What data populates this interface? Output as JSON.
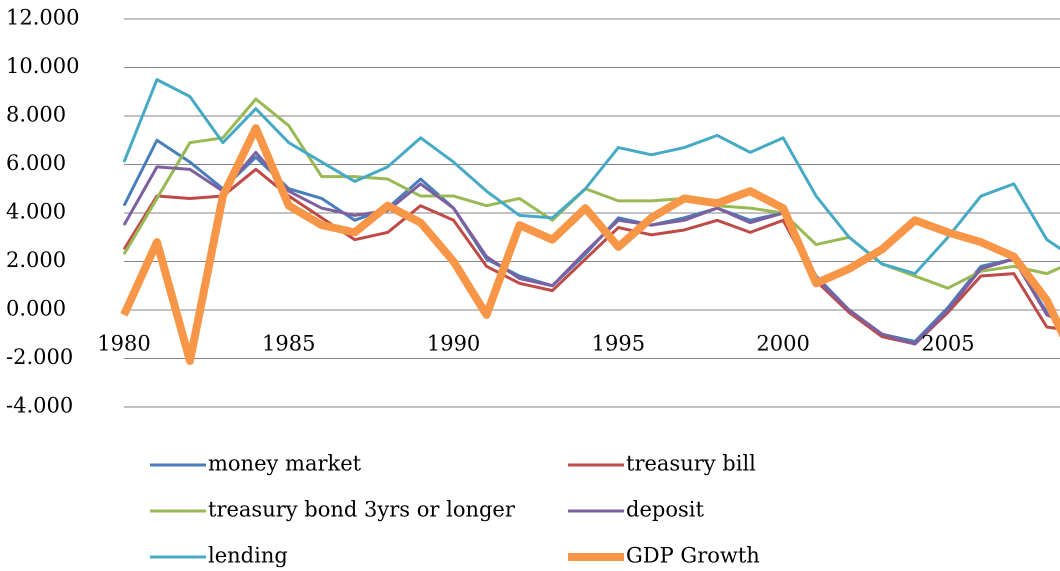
{
  "chart_data": {
    "type": "line",
    "x": [
      1980,
      1981,
      1982,
      1983,
      1984,
      1985,
      1986,
      1987,
      1988,
      1989,
      1990,
      1991,
      1992,
      1993,
      1994,
      1995,
      1996,
      1997,
      1998,
      1999,
      2000,
      2001,
      2002,
      2003,
      2004,
      2005,
      2006,
      2007,
      2008,
      2009
    ],
    "xlim": [
      1980,
      2008.4
    ],
    "xticks": [
      1980,
      1985,
      1990,
      1995,
      2000,
      2005
    ],
    "ylim": [
      -4,
      12
    ],
    "yticks": [
      {
        "value": -4,
        "label": "-4.000"
      },
      {
        "value": -2,
        "label": "-2.000"
      },
      {
        "value": 0,
        "label": "0.000"
      },
      {
        "value": 2,
        "label": "2.000"
      },
      {
        "value": 4,
        "label": "4.000"
      },
      {
        "value": 6,
        "label": "6.000"
      },
      {
        "value": 8,
        "label": "8.000"
      },
      {
        "value": 10,
        "label": "10.000"
      },
      {
        "value": 12,
        "label": "12.000"
      }
    ],
    "grid": true,
    "legend": "bottom",
    "series": [
      {
        "name": "money market",
        "color": "#4a7ebb",
        "linewidth": 3,
        "values": [
          4.3,
          7.0,
          6.1,
          5.0,
          6.3,
          5.0,
          4.6,
          3.7,
          4.2,
          5.4,
          4.2,
          2.1,
          1.4,
          1.0,
          2.3,
          3.8,
          3.5,
          3.8,
          4.2,
          3.7,
          4.0,
          1.4,
          0.0,
          -1.0,
          -1.3,
          0.1,
          1.8,
          2.1,
          -0.1,
          -1.1
        ]
      },
      {
        "name": "treasury bill",
        "color": "#be4b48",
        "linewidth": 3,
        "values": [
          2.5,
          4.7,
          4.6,
          4.7,
          5.8,
          4.7,
          3.8,
          2.9,
          3.2,
          4.3,
          3.7,
          1.8,
          1.1,
          0.8,
          2.1,
          3.4,
          3.1,
          3.3,
          3.7,
          3.2,
          3.7,
          1.2,
          -0.1,
          -1.1,
          -1.4,
          -0.1,
          1.4,
          1.5,
          -0.7,
          -0.9
        ]
      },
      {
        "name": "treasury bond 3yrs or longer",
        "color": "#98b954",
        "linewidth": 3,
        "values": [
          2.3,
          4.6,
          6.9,
          7.1,
          8.7,
          7.6,
          5.5,
          5.5,
          5.4,
          4.7,
          4.7,
          4.3,
          4.6,
          3.7,
          5.0,
          4.5,
          4.5,
          4.6,
          4.3,
          4.2,
          4.0,
          2.7,
          3.0,
          1.9,
          1.4,
          0.9,
          1.6,
          1.8,
          1.5,
          2.1
        ]
      },
      {
        "name": "deposit",
        "color": "#7d60a0",
        "linewidth": 3,
        "values": [
          3.5,
          5.9,
          5.8,
          4.9,
          6.5,
          4.9,
          4.2,
          3.9,
          4.1,
          5.2,
          4.2,
          2.2,
          1.3,
          1.0,
          2.4,
          3.7,
          3.5,
          3.7,
          4.2,
          3.6,
          4.0,
          1.3,
          0.0,
          -1.0,
          -1.4,
          0.0,
          1.7,
          2.1,
          -0.2,
          -0.8
        ]
      },
      {
        "name": "lending",
        "color": "#46aac5",
        "linewidth": 3,
        "values": [
          6.1,
          9.5,
          8.8,
          6.9,
          8.3,
          6.9,
          6.1,
          5.3,
          5.9,
          7.1,
          6.1,
          4.9,
          3.9,
          3.8,
          5.0,
          6.7,
          6.4,
          6.7,
          7.2,
          6.5,
          7.1,
          4.7,
          3.0,
          1.9,
          1.5,
          3.0,
          4.7,
          5.2,
          2.9,
          2.0
        ]
      },
      {
        "name": "GDP Growth",
        "color": "#f79646",
        "linewidth": 8,
        "values": [
          -0.2,
          2.8,
          -2.1,
          4.7,
          7.5,
          4.3,
          3.5,
          3.2,
          4.3,
          3.6,
          2.0,
          -0.2,
          3.5,
          2.9,
          4.2,
          2.6,
          3.8,
          4.6,
          4.4,
          4.9,
          4.2,
          1.1,
          1.7,
          2.5,
          3.7,
          3.2,
          2.8,
          2.2,
          0.4,
          -2.5
        ]
      }
    ]
  }
}
